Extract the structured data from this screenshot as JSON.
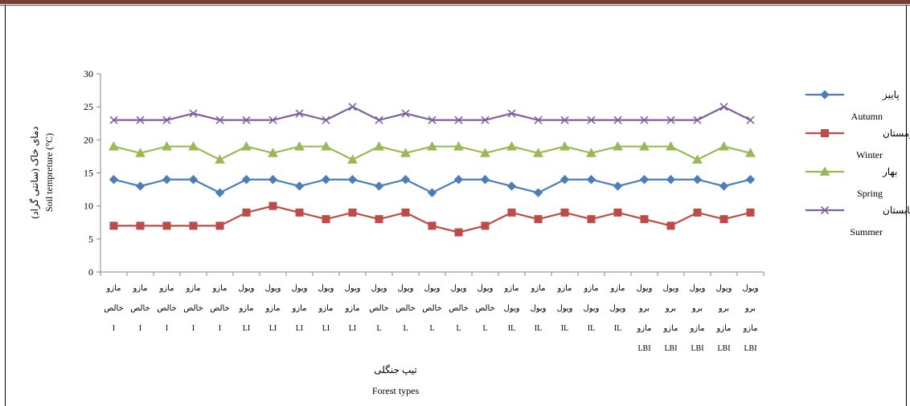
{
  "chart_data": {
    "type": "line",
    "xlabel_fa": "تیپ جنگلی",
    "xlabel_en": "Forest types",
    "ylabel_fa": "دمای خاک (سانتی گراد)",
    "ylabel_en": "Soil tempreture (°C)",
    "ylim": [
      0,
      30
    ],
    "yticks": [
      "0",
      "5",
      "10",
      "15",
      "20",
      "25",
      "30"
    ],
    "categories": [
      [
        "مازو",
        "خالص",
        "I"
      ],
      [
        "مازو",
        "خالص",
        "I"
      ],
      [
        "مازو",
        "خالص",
        "I"
      ],
      [
        "مازو",
        "خالص",
        "I"
      ],
      [
        "مازو",
        "خالص",
        "I"
      ],
      [
        "ویول",
        "مازو",
        "LI"
      ],
      [
        "ویول",
        "مازو",
        "LI"
      ],
      [
        "ویول",
        "مازو",
        "LI"
      ],
      [
        "ویول",
        "مازو",
        "LI"
      ],
      [
        "ویول",
        "مازو",
        "LI"
      ],
      [
        "ویول",
        "خالص",
        "L"
      ],
      [
        "ویول",
        "خالص",
        "L"
      ],
      [
        "ویول",
        "خالص",
        "L"
      ],
      [
        "ویول",
        "خالص",
        "L"
      ],
      [
        "ویول",
        "خالص",
        "L"
      ],
      [
        "مازو",
        "ویول",
        "IL"
      ],
      [
        "مازو",
        "ویول",
        "IL"
      ],
      [
        "مازو",
        "ویول",
        "IL"
      ],
      [
        "مازو",
        "ویول",
        "IL"
      ],
      [
        "مازو",
        "ویول",
        "IL"
      ],
      [
        "ویول",
        "برو",
        "مازو",
        "LBI"
      ],
      [
        "ویول",
        "برو",
        "مازو",
        "LBI"
      ],
      [
        "ویول",
        "برو",
        "مازو",
        "LBI"
      ],
      [
        "ویول",
        "برو",
        "مازو",
        "LBI"
      ],
      [
        "ویول",
        "برو",
        "مازو",
        "LBI"
      ]
    ],
    "series": [
      {
        "name": "پاییز",
        "name_en": "Autumn",
        "color": "#4a7ebb",
        "marker": "diamond",
        "values": [
          14,
          13,
          14,
          14,
          12,
          14,
          14,
          13,
          14,
          14,
          13,
          14,
          12,
          14,
          14,
          13,
          12,
          14,
          14,
          13,
          14,
          14,
          14,
          13,
          14
        ]
      },
      {
        "name": "زمستان",
        "name_en": "Winter",
        "color": "#be4b48",
        "marker": "square",
        "values": [
          7,
          7,
          7,
          7,
          7,
          9,
          10,
          9,
          8,
          9,
          8,
          9,
          7,
          6,
          7,
          9,
          8,
          9,
          8,
          9,
          8,
          7,
          9,
          8,
          9
        ]
      },
      {
        "name": "بهار",
        "name_en": "Spring",
        "color": "#98b954",
        "marker": "triangle",
        "values": [
          19,
          18,
          19,
          19,
          17,
          19,
          18,
          19,
          19,
          17,
          19,
          18,
          19,
          19,
          18,
          19,
          18,
          19,
          18,
          19,
          19,
          19,
          17,
          19,
          18
        ]
      },
      {
        "name": "تابستان",
        "name_en": "Summer",
        "color": "#7d60a0",
        "marker": "x",
        "values": [
          23,
          23,
          23,
          24,
          23,
          23,
          23,
          24,
          23,
          25,
          23,
          24,
          23,
          23,
          23,
          24,
          23,
          23,
          23,
          23,
          23,
          23,
          23,
          25,
          23
        ]
      }
    ]
  }
}
